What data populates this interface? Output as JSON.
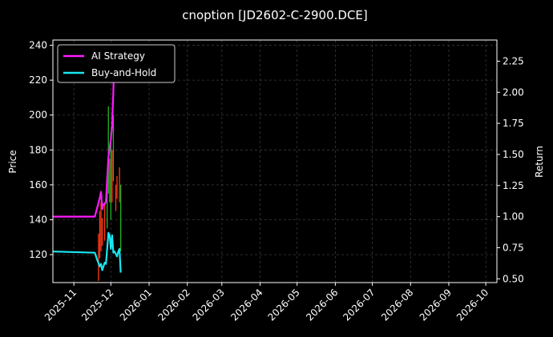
{
  "chart_data": {
    "type": "line",
    "title": "cnoption [JD2602-C-2900.DCE]",
    "ylabel": "Price",
    "y2label": "Return",
    "xlim": [
      "2025-10-15",
      "2026-10-10"
    ],
    "ylim": [
      104,
      243
    ],
    "y2lim": [
      0.47,
      2.42
    ],
    "grid": true,
    "legend_position": "top-left",
    "x_ticks": [
      "2025-11",
      "2025-12",
      "2026-01",
      "2026-02",
      "2026-03",
      "2026-04",
      "2026-05",
      "2026-06",
      "2026-07",
      "2026-08",
      "2026-09",
      "2026-10"
    ],
    "x_tick_dates": [
      "2025-11-01",
      "2025-12-01",
      "2026-01-01",
      "2026-02-01",
      "2026-03-01",
      "2026-04-01",
      "2026-05-01",
      "2026-06-01",
      "2026-07-01",
      "2026-08-01",
      "2026-09-01",
      "2026-10-01"
    ],
    "y_ticks": [
      120,
      140,
      160,
      180,
      200,
      220,
      240
    ],
    "y2_ticks": [
      0.5,
      0.75,
      1.0,
      1.25,
      1.5,
      1.75,
      2.0,
      2.25
    ],
    "series": [
      {
        "name": "AI Strategy",
        "axis": "right",
        "color": "#ff1aff",
        "points": [
          [
            "2025-10-15",
            1.0
          ],
          [
            "2025-11-18",
            1.0
          ],
          [
            "2025-11-22",
            1.15
          ],
          [
            "2025-11-23",
            1.2
          ],
          [
            "2025-11-24",
            1.06
          ],
          [
            "2025-11-25",
            1.1
          ],
          [
            "2025-11-26",
            1.1
          ],
          [
            "2025-11-27",
            1.12
          ],
          [
            "2025-11-28",
            1.3
          ],
          [
            "2025-11-29",
            1.48
          ],
          [
            "2025-11-30",
            1.55
          ],
          [
            "2025-12-01",
            1.62
          ],
          [
            "2025-12-02",
            1.73
          ],
          [
            "2025-12-03",
            2.0
          ],
          [
            "2025-12-04",
            2.38
          ]
        ]
      },
      {
        "name": "Buy-and-Hold",
        "axis": "right",
        "color": "#19e6f0",
        "points": [
          [
            "2025-10-15",
            0.72
          ],
          [
            "2025-11-18",
            0.71
          ],
          [
            "2025-11-20",
            0.65
          ],
          [
            "2025-11-22",
            0.6
          ],
          [
            "2025-11-23",
            0.62
          ],
          [
            "2025-11-24",
            0.57
          ],
          [
            "2025-11-25",
            0.6
          ],
          [
            "2025-11-26",
            0.63
          ],
          [
            "2025-11-27",
            0.62
          ],
          [
            "2025-11-28",
            0.74
          ],
          [
            "2025-11-29",
            0.87
          ],
          [
            "2025-11-30",
            0.85
          ],
          [
            "2025-12-01",
            0.74
          ],
          [
            "2025-12-02",
            0.85
          ],
          [
            "2025-12-03",
            0.71
          ],
          [
            "2025-12-04",
            0.72
          ],
          [
            "2025-12-05",
            0.7
          ],
          [
            "2025-12-06",
            0.68
          ],
          [
            "2025-12-07",
            0.72
          ],
          [
            "2025-12-08",
            0.74
          ],
          [
            "2025-12-09",
            0.55
          ]
        ]
      }
    ],
    "candles": [
      {
        "date": "2025-11-21",
        "low": 105,
        "high": 132,
        "color": "#ff3a1a"
      },
      {
        "date": "2025-11-22",
        "low": 118,
        "high": 145,
        "color": "#ff3a1a"
      },
      {
        "date": "2025-11-23",
        "low": 122,
        "high": 150,
        "color": "#ff3a1a"
      },
      {
        "date": "2025-11-24",
        "low": 125,
        "high": 141,
        "color": "#ff3a1a"
      },
      {
        "date": "2025-11-26",
        "low": 128,
        "high": 150,
        "color": "#ff3a1a"
      },
      {
        "date": "2025-11-28",
        "low": 135,
        "high": 163,
        "color": "#22b522"
      },
      {
        "date": "2025-11-29",
        "low": 155,
        "high": 205,
        "color": "#22b522"
      },
      {
        "date": "2025-11-30",
        "low": 150,
        "high": 175,
        "color": "#ff3a1a"
      },
      {
        "date": "2025-12-01",
        "low": 140,
        "high": 190,
        "color": "#22b522"
      },
      {
        "date": "2025-12-02",
        "low": 150,
        "high": 180,
        "color": "#ff3a1a"
      },
      {
        "date": "2025-12-03",
        "low": 162,
        "high": 200,
        "color": "#22b522"
      },
      {
        "date": "2025-12-05",
        "low": 145,
        "high": 160,
        "color": "#ff3a1a"
      },
      {
        "date": "2025-12-06",
        "low": 152,
        "high": 165,
        "color": "#ff3a1a"
      },
      {
        "date": "2025-12-08",
        "low": 150,
        "high": 170,
        "color": "#ff3a1a"
      },
      {
        "date": "2025-12-09",
        "low": 122,
        "high": 160,
        "color": "#22b522"
      }
    ]
  }
}
